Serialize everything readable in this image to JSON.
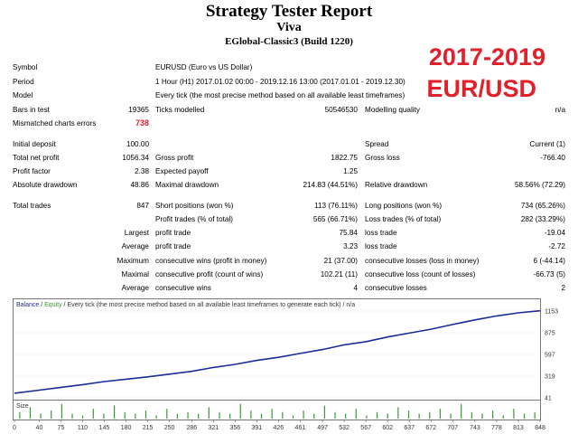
{
  "header": {
    "title": "Strategy Tester Report",
    "expert": "Viva",
    "server": "EGlobal-Classic3 (Build 1220)"
  },
  "promo": {
    "line1": "2017-2019",
    "line2": "EUR/USD"
  },
  "info": {
    "symbol_label": "Symbol",
    "symbol_value": "EURUSD (Euro vs US Dollar)",
    "period_label": "Period",
    "period_value": "1 Hour (H1) 2017.01.02 00:00 - 2019.12.16 13:00 (2017.01.01 - 2019.12.30)",
    "model_label": "Model",
    "model_value": "Every tick (the most precise method based on all available least timeframes)",
    "bars_label": "Bars in test",
    "bars_value": "19365",
    "ticks_label": "Ticks modelled",
    "ticks_value": "50546530",
    "quality_label": "Modelling quality",
    "quality_value": "n/a",
    "mismatch_label": "Mismatched charts errors",
    "mismatch_value": "738"
  },
  "results": {
    "deposit_label": "Initial deposit",
    "deposit_value": "100.00",
    "spread_label": "Spread",
    "spread_value": "Current (1)",
    "netprofit_label": "Total net profit",
    "netprofit_value": "1056.34",
    "grossprofit_label": "Gross profit",
    "grossprofit_value": "1822.75",
    "grossloss_label": "Gross loss",
    "grossloss_value": "-766.40",
    "pf_label": "Profit factor",
    "pf_value": "2.38",
    "payoff_label": "Expected payoff",
    "payoff_value": "1.25",
    "absdd_label": "Absolute drawdown",
    "absdd_value": "48.86",
    "maxdd_label": "Maximal drawdown",
    "maxdd_value": "214.83 (44.51%)",
    "reldd_label": "Relative drawdown",
    "reldd_value": "58.56% (72.29)"
  },
  "trades": {
    "total_label": "Total trades",
    "total_value": "847",
    "short_label": "Short positions (won %)",
    "short_value": "113 (76.11%)",
    "long_label": "Long positions (won %)",
    "long_value": "734 (65.26%)",
    "profit_trades_label": "Profit trades (% of total)",
    "profit_trades_value": "565 (66.71%)",
    "loss_trades_label": "Loss trades (% of total)",
    "loss_trades_value": "282 (33.29%)",
    "largest_label": "Largest",
    "largest_profit_label": "profit trade",
    "largest_profit_value": "75.84",
    "largest_loss_label": "loss trade",
    "largest_loss_value": "-19.04",
    "average_label": "Average",
    "average_profit_label": "profit trade",
    "average_profit_value": "3.23",
    "average_loss_label": "loss trade",
    "average_loss_value": "-2.72",
    "maximum_label": "Maximum",
    "max_wins_label": "consecutive wins (profit in money)",
    "max_wins_value": "21 (37.00)",
    "max_losses_label": "consecutive losses (loss in money)",
    "max_losses_value": "6 (-44.14)",
    "maximal_label": "Maximal",
    "maximal_profit_label": "consecutive profit (count of wins)",
    "maximal_profit_value": "102.21 (11)",
    "maximal_loss_label": "consecutive loss (count of losses)",
    "maximal_loss_value": "-66.73 (5)",
    "avg_label": "Average",
    "avg_wins_label": "consecutive wins",
    "avg_wins_value": "4",
    "avg_losses_label": "consecutive losses",
    "avg_losses_value": "2"
  },
  "chart_data": {
    "type": "line",
    "legend": {
      "balance": "Balance",
      "sep": " / ",
      "equity": "Equity",
      "rest": " / Every tick (the most precise method based on all available least timeframes to generate each tick) / n/a"
    },
    "size_label": "Size",
    "y_ticks": [
      "1153",
      "875",
      "597",
      "319",
      "41"
    ],
    "y_tick_values": [
      1153,
      875,
      597,
      319,
      41
    ],
    "ylim": [
      41,
      1153
    ],
    "x_ticks": [
      "0",
      "40",
      "75",
      "110",
      "145",
      "180",
      "215",
      "250",
      "286",
      "321",
      "356",
      "391",
      "426",
      "461",
      "497",
      "532",
      "567",
      "602",
      "637",
      "672",
      "707",
      "743",
      "778",
      "813",
      "848"
    ],
    "xlim": [
      0,
      848
    ],
    "balance": [
      [
        0,
        100
      ],
      [
        40,
        140
      ],
      [
        75,
        175
      ],
      [
        110,
        210
      ],
      [
        145,
        250
      ],
      [
        180,
        280
      ],
      [
        215,
        310
      ],
      [
        250,
        345
      ],
      [
        286,
        380
      ],
      [
        321,
        430
      ],
      [
        356,
        470
      ],
      [
        391,
        520
      ],
      [
        426,
        560
      ],
      [
        461,
        610
      ],
      [
        497,
        660
      ],
      [
        532,
        720
      ],
      [
        567,
        760
      ],
      [
        602,
        820
      ],
      [
        637,
        870
      ],
      [
        672,
        920
      ],
      [
        707,
        980
      ],
      [
        743,
        1040
      ],
      [
        778,
        1090
      ],
      [
        813,
        1130
      ],
      [
        848,
        1156
      ]
    ],
    "volumes": [
      0.4,
      0.7,
      0.3,
      0.5,
      0.9,
      0.3,
      0.2,
      0.6,
      0.3,
      0.8,
      0.4,
      0.3,
      0.5,
      0.2,
      0.6,
      0.3,
      0.4,
      0.3,
      0.7,
      0.4,
      0.3,
      0.9,
      0.5,
      0.3,
      0.6,
      0.4,
      0.2,
      0.5,
      0.3,
      0.8,
      0.4,
      0.3,
      0.6,
      0.2,
      0.4,
      0.3,
      0.7,
      0.5,
      0.3,
      0.4,
      0.6,
      0.3,
      0.9,
      0.4,
      0.3,
      0.5,
      0.2,
      0.6,
      0.3,
      0.4
    ],
    "colors": {
      "balance": "#1b2b9a",
      "equity": "#3a9a32",
      "volume": "#3a9a32"
    }
  }
}
